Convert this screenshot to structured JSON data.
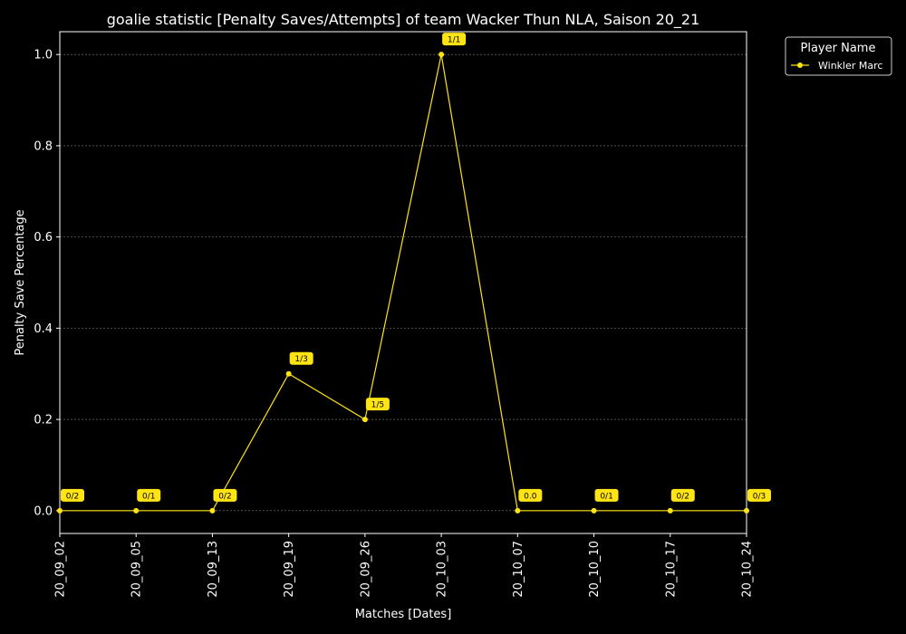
{
  "chart_data": {
    "type": "line",
    "title": "goalie statistic [Penalty Saves/Attempts] of team Wacker Thun NLA, Saison 20_21",
    "xlabel": "Matches [Dates]",
    "ylabel": "Penalty Save Percentage",
    "categories": [
      "20_09_02",
      "20_09_05",
      "20_09_13",
      "20_09_19",
      "20_09_26",
      "20_10_03",
      "20_10_07",
      "20_10_10",
      "20_10_17",
      "20_10_24"
    ],
    "yticks": [
      "0.0",
      "0.2",
      "0.4",
      "0.6",
      "0.8",
      "1.0"
    ],
    "ylim": [
      -0.05,
      1.05
    ],
    "grid": "horizontal",
    "legend_title": "Player Name",
    "legend_position": "outside-top-right",
    "series": [
      {
        "name": "Winkler Marc",
        "color": "#ffe414",
        "values": [
          0.0,
          0.0,
          0.0,
          0.3,
          0.2,
          1.0,
          0.0,
          0.0,
          0.0,
          0.0
        ],
        "labels": [
          "0/2",
          "0/1",
          "0/2",
          "1/3",
          "1/5",
          "1/1",
          "0.0",
          "0/1",
          "0/2",
          "0/3"
        ]
      }
    ]
  }
}
